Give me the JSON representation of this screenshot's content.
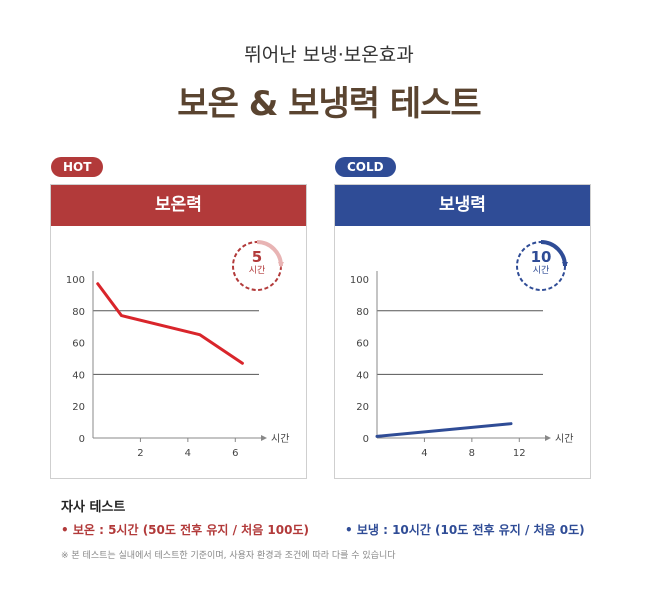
{
  "header": {
    "subtitle": "뛰어난 보냉·보온효과",
    "title": "보온 & 보냉력 테스트"
  },
  "panels": {
    "hot": {
      "tag": "HOT",
      "heading": "보온력",
      "badge_number": "5",
      "badge_unit": "시간",
      "color": "#b23a3a"
    },
    "cold": {
      "tag": "COLD",
      "heading": "보냉력",
      "badge_number": "10",
      "badge_unit": "시간",
      "color": "#2f4c96"
    }
  },
  "footer": {
    "title": "자사 테스트",
    "hot_legend": "• 보온 : 5시간 (50도 전후 유지 / 처음 100도)",
    "cold_legend": "• 보냉 : 10시간 (10도 전후 유지 / 처음 0도)",
    "note": "※ 본 테스트는 실내에서 테스트한 기준이며, 사용자 환경과 조건에 따라 다를 수 있습니다"
  },
  "chart_data": [
    {
      "type": "line",
      "title": "보온력",
      "xlabel": "시간",
      "ylabel": "",
      "x_ticks": [
        2,
        4,
        6
      ],
      "y_ticks": [
        0,
        20,
        40,
        60,
        80,
        100
      ],
      "xlim": [
        0,
        7
      ],
      "ylim": [
        0,
        100
      ],
      "grid": "horizontal at 40 and 80",
      "series": [
        {
          "x": [
            0.2,
            1.2,
            4.5,
            6.3
          ],
          "y": [
            97,
            77,
            65,
            47
          ],
          "color": "#d9252b"
        }
      ]
    },
    {
      "type": "line",
      "title": "보냉력",
      "xlabel": "시간",
      "ylabel": "",
      "x_ticks": [
        4,
        8,
        12
      ],
      "y_ticks": [
        0,
        20,
        40,
        60,
        80,
        100
      ],
      "xlim": [
        0,
        14
      ],
      "ylim": [
        0,
        100
      ],
      "grid": "horizontal at 40 and 80",
      "series": [
        {
          "x": [
            0,
            11.3
          ],
          "y": [
            1,
            9
          ],
          "color": "#2f4c96"
        }
      ]
    }
  ]
}
